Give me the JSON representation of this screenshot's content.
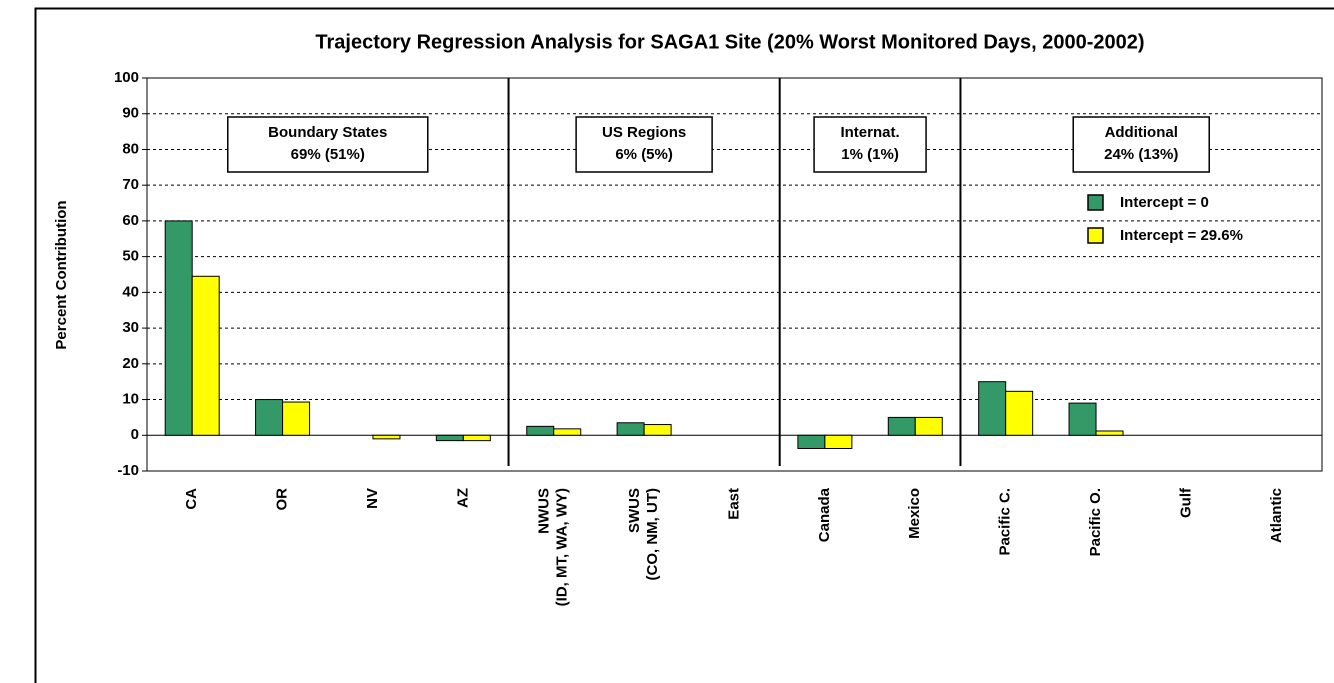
{
  "chart_data": {
    "type": "bar",
    "title": "Trajectory Regression Analysis for SAGA1 Site (20% Worst Monitored Days, 2000-2002)",
    "y_label": "Percent Contribution",
    "categories": [
      "CA",
      "OR",
      "NV",
      "AZ",
      [
        "NWUS",
        "(ID, MT, WA, WY)"
      ],
      [
        "SWUS",
        "(CO, NM, UT)"
      ],
      "East",
      "Canada",
      "Mexico",
      "Pacific C.",
      "Pacific O.",
      "Gulf",
      "Atlantic"
    ],
    "series": [
      {
        "name": "Intercept = 0",
        "color": "#339966",
        "values": [
          60,
          10,
          0,
          -1.5,
          2.5,
          3.5,
          0,
          -3.7,
          5,
          15,
          9,
          0,
          0
        ]
      },
      {
        "name": "Intercept = 29.6%",
        "color": "#ffff00",
        "values": [
          44.5,
          9.3,
          -1,
          -1.5,
          1.8,
          3,
          0,
          -3.7,
          5,
          12.3,
          1.2,
          0,
          0
        ]
      }
    ],
    "groups": [
      {
        "title": "Boundary States",
        "text": "69% (51%)"
      },
      {
        "title": "US Regions",
        "text": "6% (5%)"
      },
      {
        "title": "Internat.",
        "text": "1% (1%)"
      },
      {
        "title": "Additional",
        "text": "24% (13%)"
      }
    ],
    "ylim": [
      -10,
      100
    ],
    "yticks": [
      -10,
      0,
      10,
      20,
      30,
      40,
      50,
      60,
      70,
      80,
      90,
      100
    ],
    "grid": true,
    "legend": "top-right"
  }
}
